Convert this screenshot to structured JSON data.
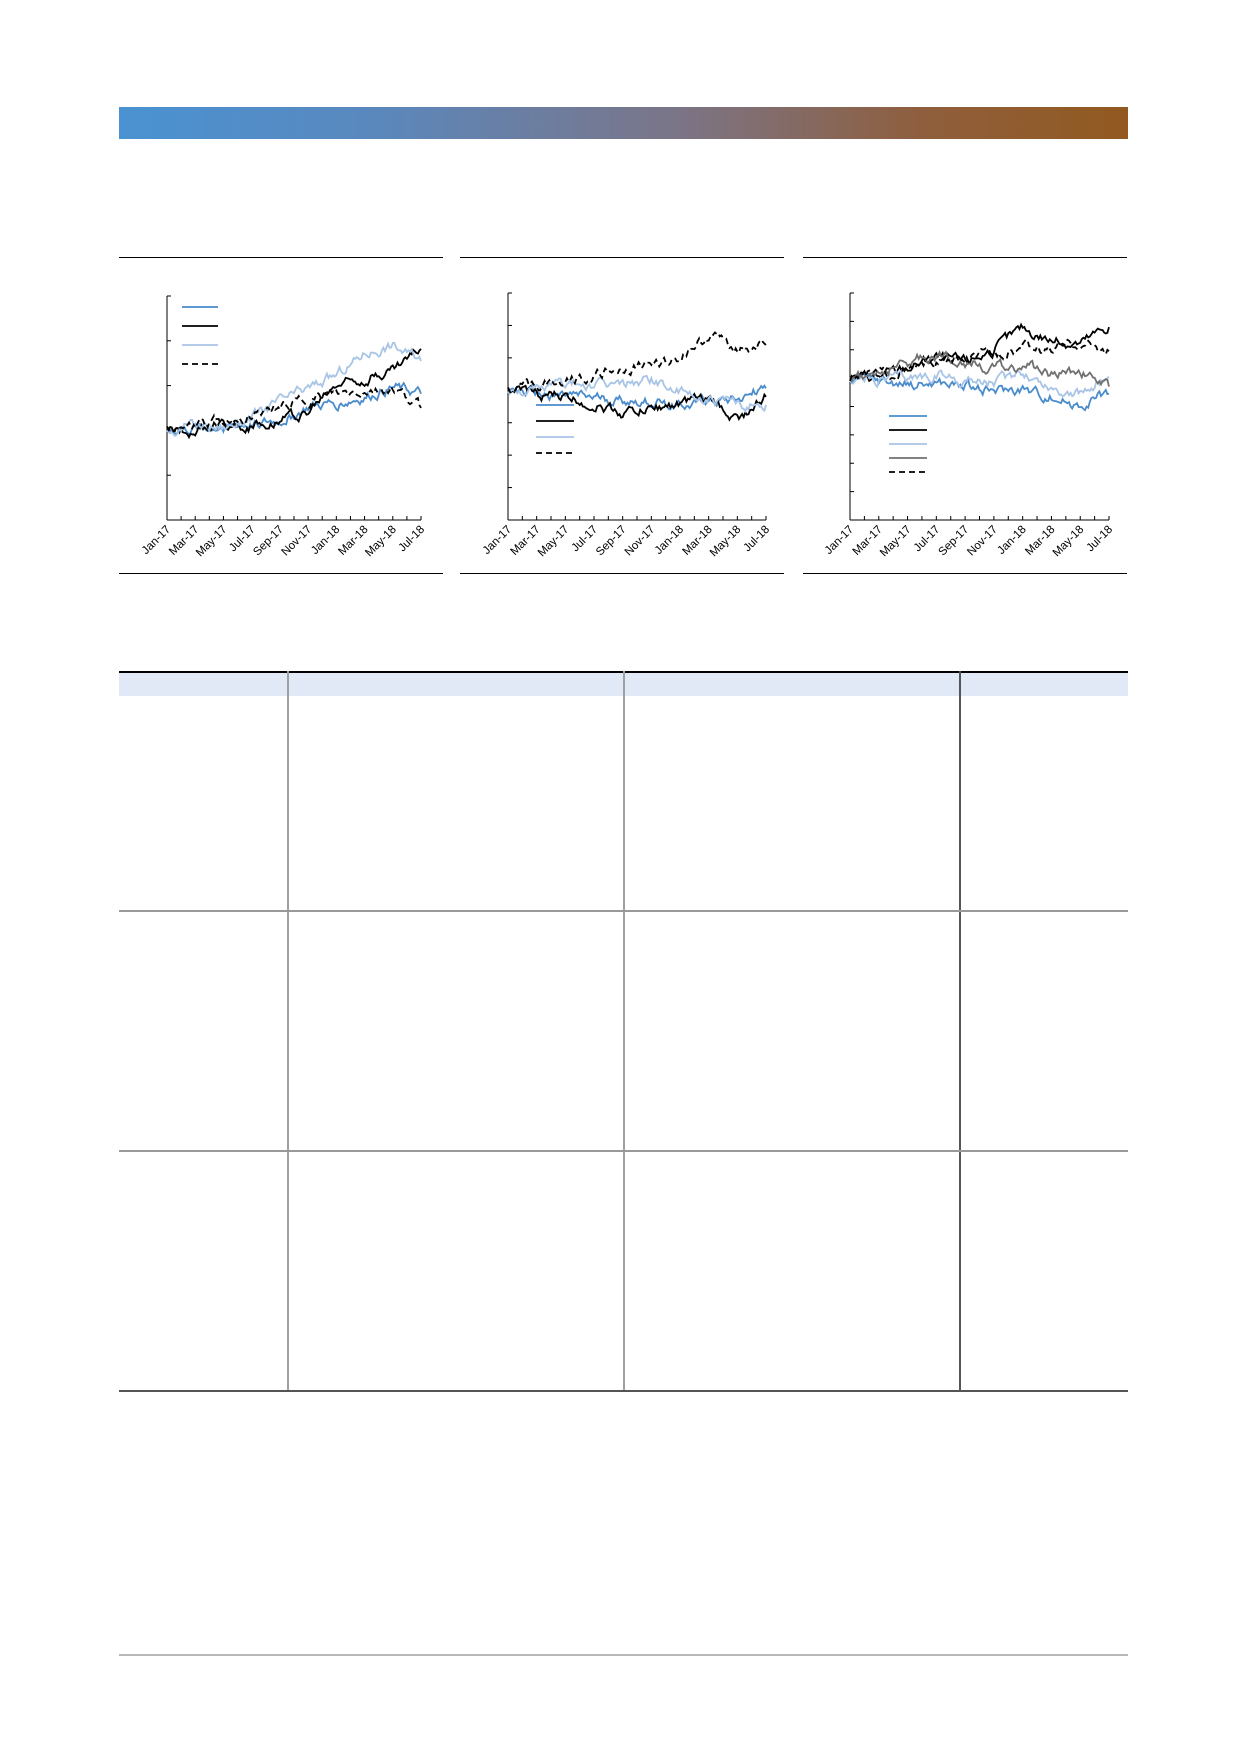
{
  "colors": {
    "series_blue": "#4a8ccc",
    "series_black": "#000000",
    "series_lightblue": "#a9c5e6",
    "series_grey": "#707070",
    "banner_start": "#4a92d2",
    "banner_end": "#925a20",
    "table_header_bg": "#e2e9f6"
  },
  "chart_data": [
    {
      "type": "line",
      "x": [
        "Jan-17",
        "Mar-17",
        "May-17",
        "Jul-17",
        "Sep-17",
        "Nov-17",
        "Jan-18",
        "Mar-18",
        "May-18",
        "Jul-18"
      ],
      "ylim": [
        0,
        5
      ],
      "legend_position": "top-left",
      "grid": false,
      "series": [
        {
          "style": "solid",
          "color": "#4a8ccc",
          "values": [
            2.0,
            2.04,
            2.1,
            2.14,
            2.22,
            2.52,
            2.62,
            2.74,
            2.95,
            2.82
          ]
        },
        {
          "style": "solid",
          "color": "#000000",
          "values": [
            2.0,
            1.98,
            2.18,
            2.08,
            2.28,
            2.4,
            3.05,
            3.18,
            3.35,
            3.82
          ]
        },
        {
          "style": "solid",
          "color": "#a9c5e6",
          "values": [
            2.0,
            2.1,
            2.06,
            2.28,
            2.64,
            2.92,
            3.22,
            3.72,
            3.9,
            3.55
          ]
        },
        {
          "style": "dashed",
          "color": "#000000",
          "values": [
            2.0,
            2.12,
            2.2,
            2.32,
            2.5,
            2.68,
            2.78,
            2.85,
            2.92,
            2.5
          ]
        }
      ]
    },
    {
      "type": "line",
      "x": [
        "Jan-17",
        "Mar-17",
        "May-17",
        "Jul-17",
        "Sep-17",
        "Nov-17",
        "Jan-18",
        "Mar-18",
        "May-18",
        "Jul-18"
      ],
      "ylim": [
        0,
        7
      ],
      "legend_position": "center-left",
      "grid": false,
      "series": [
        {
          "style": "solid",
          "color": "#4a8ccc",
          "values": [
            4.0,
            3.88,
            3.82,
            3.75,
            3.68,
            3.62,
            3.55,
            3.7,
            3.8,
            4.06
          ]
        },
        {
          "style": "solid",
          "color": "#000000",
          "values": [
            4.0,
            3.9,
            3.78,
            3.55,
            3.3,
            3.45,
            3.6,
            3.72,
            3.1,
            3.8
          ]
        },
        {
          "style": "solid",
          "color": "#a9c5e6",
          "values": [
            4.0,
            4.0,
            4.22,
            4.1,
            4.18,
            4.35,
            3.9,
            3.7,
            3.55,
            3.55
          ]
        },
        {
          "style": "dashed",
          "color": "#000000",
          "values": [
            4.0,
            4.18,
            4.3,
            4.48,
            4.62,
            4.82,
            5.0,
            5.7,
            5.35,
            5.4
          ]
        }
      ]
    },
    {
      "type": "line",
      "x": [
        "Jan-17",
        "Mar-17",
        "May-17",
        "Jul-17",
        "Sep-17",
        "Nov-17",
        "Jan-18",
        "Mar-18",
        "May-18",
        "Jul-18"
      ],
      "ylim": [
        0,
        8
      ],
      "legend_position": "bottom-left",
      "grid": false,
      "series": [
        {
          "style": "solid",
          "color": "#4a8ccc",
          "values": [
            5.0,
            4.9,
            4.75,
            4.82,
            4.7,
            4.55,
            4.6,
            4.3,
            4.08,
            4.45
          ]
        },
        {
          "style": "solid",
          "color": "#000000",
          "values": [
            5.0,
            5.05,
            5.35,
            5.72,
            5.55,
            6.0,
            6.75,
            6.3,
            6.2,
            6.8
          ]
        },
        {
          "style": "solid",
          "color": "#a9c5e6",
          "values": [
            5.0,
            4.95,
            5.05,
            5.1,
            4.92,
            4.85,
            5.22,
            4.65,
            4.45,
            5.05
          ]
        },
        {
          "style": "solid",
          "color": "#707070",
          "values": [
            5.0,
            5.2,
            5.55,
            5.85,
            5.6,
            5.35,
            5.45,
            5.15,
            5.3,
            4.7
          ]
        },
        {
          "style": "dashed",
          "color": "#000000",
          "values": [
            5.0,
            5.15,
            5.25,
            5.55,
            5.65,
            5.85,
            6.1,
            6.0,
            6.25,
            5.95
          ]
        }
      ]
    }
  ]
}
